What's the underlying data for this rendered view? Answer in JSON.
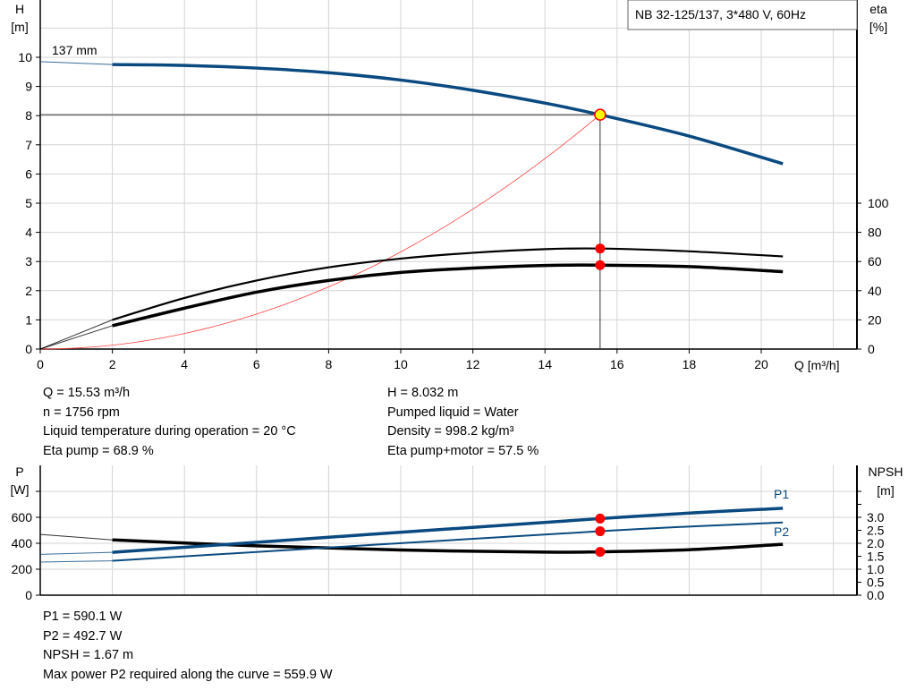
{
  "chart_data": [
    {
      "type": "line",
      "title": "NB 32-125/137, 3*480 V, 60Hz",
      "xlabel": "Q [m³/h]",
      "ylabel": "H\n[m]",
      "y2label": "eta\n[%]",
      "xlim": [
        0,
        22
      ],
      "ylim": [
        0,
        11
      ],
      "y2lim": [
        0,
        100
      ],
      "grid": true,
      "x_ticks": [
        "0",
        "2",
        "4",
        "6",
        "8",
        "10",
        "12",
        "14",
        "16",
        "18",
        "20"
      ],
      "y_ticks": [
        "0",
        "1",
        "2",
        "3",
        "4",
        "5",
        "6",
        "7",
        "8",
        "9",
        "10"
      ],
      "y2_ticks": [
        "0",
        "20",
        "40",
        "60",
        "80",
        "100"
      ],
      "curve_label": "137 mm",
      "series": [
        {
          "name": "H",
          "axis": "H",
          "color": "#0a4a80",
          "x": [
            0,
            2,
            4,
            6,
            8,
            10,
            12,
            14,
            15.53,
            18,
            20.6
          ],
          "y": [
            9.85,
            9.75,
            9.72,
            9.63,
            9.47,
            9.22,
            8.87,
            8.43,
            8.03,
            7.3,
            6.35
          ]
        },
        {
          "name": "Eta pump",
          "axis": "eta",
          "color": "#000000",
          "x": [
            0,
            2,
            4,
            6,
            8,
            10,
            12,
            14,
            15.53,
            18,
            20.6
          ],
          "y": [
            0,
            20,
            35,
            47,
            56,
            62,
            66,
            68.5,
            68.9,
            67,
            63.5
          ]
        },
        {
          "name": "Eta pump+motor",
          "axis": "eta",
          "color": "#000000",
          "x": [
            0,
            2,
            4,
            6,
            8,
            10,
            12,
            14,
            15.53,
            18,
            20.6
          ],
          "y": [
            0,
            16,
            28,
            39,
            47,
            52.5,
            55.5,
            57.3,
            57.5,
            56.5,
            53
          ]
        },
        {
          "name": "System curve",
          "axis": "H",
          "color": "#ff4040",
          "x": [
            0,
            15.53
          ],
          "y": [
            0,
            8.032
          ],
          "shape": "quadratic"
        }
      ],
      "duty_point": {
        "Q": 15.53,
        "H": 8.032,
        "eta_pump": 68.9,
        "eta_total": 57.5
      }
    },
    {
      "type": "line",
      "ylabel": "P\n[W]",
      "y2label": "NPSH\n[m]",
      "xlim": [
        0,
        22
      ],
      "ylim": [
        0,
        1000
      ],
      "y2lim": [
        0,
        5
      ],
      "grid": true,
      "y_ticks": [
        "0",
        "200",
        "400",
        "600"
      ],
      "y2_ticks": [
        "0.0",
        "0.5",
        "1.0",
        "1.5",
        "2.0",
        "2.5",
        "3.0"
      ],
      "series": [
        {
          "name": "P1",
          "axis": "P",
          "color": "#0a4a80",
          "x": [
            0,
            2,
            15.53,
            20.6
          ],
          "y": [
            315,
            330,
            590.1,
            670
          ]
        },
        {
          "name": "P2",
          "axis": "P",
          "color": "#0a4a80",
          "x": [
            0,
            2,
            15.53,
            20.6
          ],
          "y": [
            255,
            265,
            492.7,
            560
          ]
        },
        {
          "name": "NPSH",
          "axis": "NPSH",
          "color": "#000000",
          "x": [
            0,
            2,
            6,
            10,
            14,
            15.53,
            18,
            20.6
          ],
          "y": [
            2.34,
            2.13,
            1.9,
            1.74,
            1.66,
            1.67,
            1.75,
            1.96
          ]
        }
      ]
    }
  ],
  "info_top_left": [
    "Q = 15.53 m³/h",
    "n = 1756 rpm",
    "Liquid temperature during operation = 20 °C",
    "Eta pump = 68.9 %"
  ],
  "info_top_right": [
    "H = 8.032 m",
    "Pumped liquid = Water",
    "Density = 998.2 kg/m³",
    "Eta pump+motor = 57.5 %"
  ],
  "info_bottom": [
    "P1 = 590.1 W",
    "P2 = 492.7 W",
    "NPSH = 1.67 m",
    "Max power P2 required along the curve = 559.9 W"
  ],
  "colors": {
    "marker": "#ff0000",
    "duty_fill": "#ffff00",
    "grid": "#d4d4d4"
  }
}
